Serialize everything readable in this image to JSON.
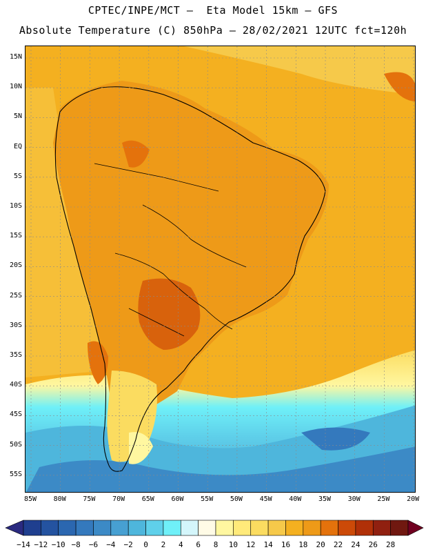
{
  "header": {
    "line1": "CPTEC/INPE/MCT –  Eta Model 15km – GFS",
    "line2": "Absolute Temperature (C) 850hPa – 28/02/2021 12UTC fct=120h"
  },
  "axes": {
    "lat_labels": [
      "15N",
      "10N",
      "5N",
      "EQ",
      "5S",
      "10S",
      "15S",
      "20S",
      "25S",
      "30S",
      "35S",
      "40S",
      "45S",
      "50S",
      "55S"
    ],
    "lon_labels": [
      "85W",
      "80W",
      "75W",
      "70W",
      "65W",
      "60W",
      "55W",
      "50W",
      "45W",
      "40W",
      "35W",
      "30W",
      "25W",
      "20W"
    ]
  },
  "colorbar": {
    "labels": [
      "-14",
      "-12",
      "-10",
      "-8",
      "-6",
      "-4",
      "-2",
      "0",
      "2",
      "4",
      "6",
      "8",
      "10",
      "12",
      "14",
      "16",
      "18",
      "20",
      "22",
      "24",
      "26",
      "28"
    ],
    "colors": [
      "#1f3f8f",
      "#2453a0",
      "#2b67b0",
      "#3479bd",
      "#3c8ac6",
      "#47a0d2",
      "#4eb6dc",
      "#5fd0ea",
      "#6ff0f8",
      "#d4f6fb",
      "#fffbe6",
      "#fff7a0",
      "#ffea7a",
      "#fbdc60",
      "#f6c94a",
      "#f4b020",
      "#ee9a18",
      "#e4720c",
      "#cc4a08",
      "#b03008",
      "#902010",
      "#701810"
    ],
    "end_colors": {
      "left": "#2a2a80",
      "right": "#700020"
    }
  },
  "palette": {
    "ocean_cold": "#4ab8e0",
    "ocean_mid": "#6ff0f8",
    "warm_base": "#f4b020",
    "warm_land": "#ee9a18",
    "hot_core": "#d8620c",
    "cool_south": "#ffea7a",
    "coast": "#000000",
    "grid": "#8a8a8a"
  }
}
